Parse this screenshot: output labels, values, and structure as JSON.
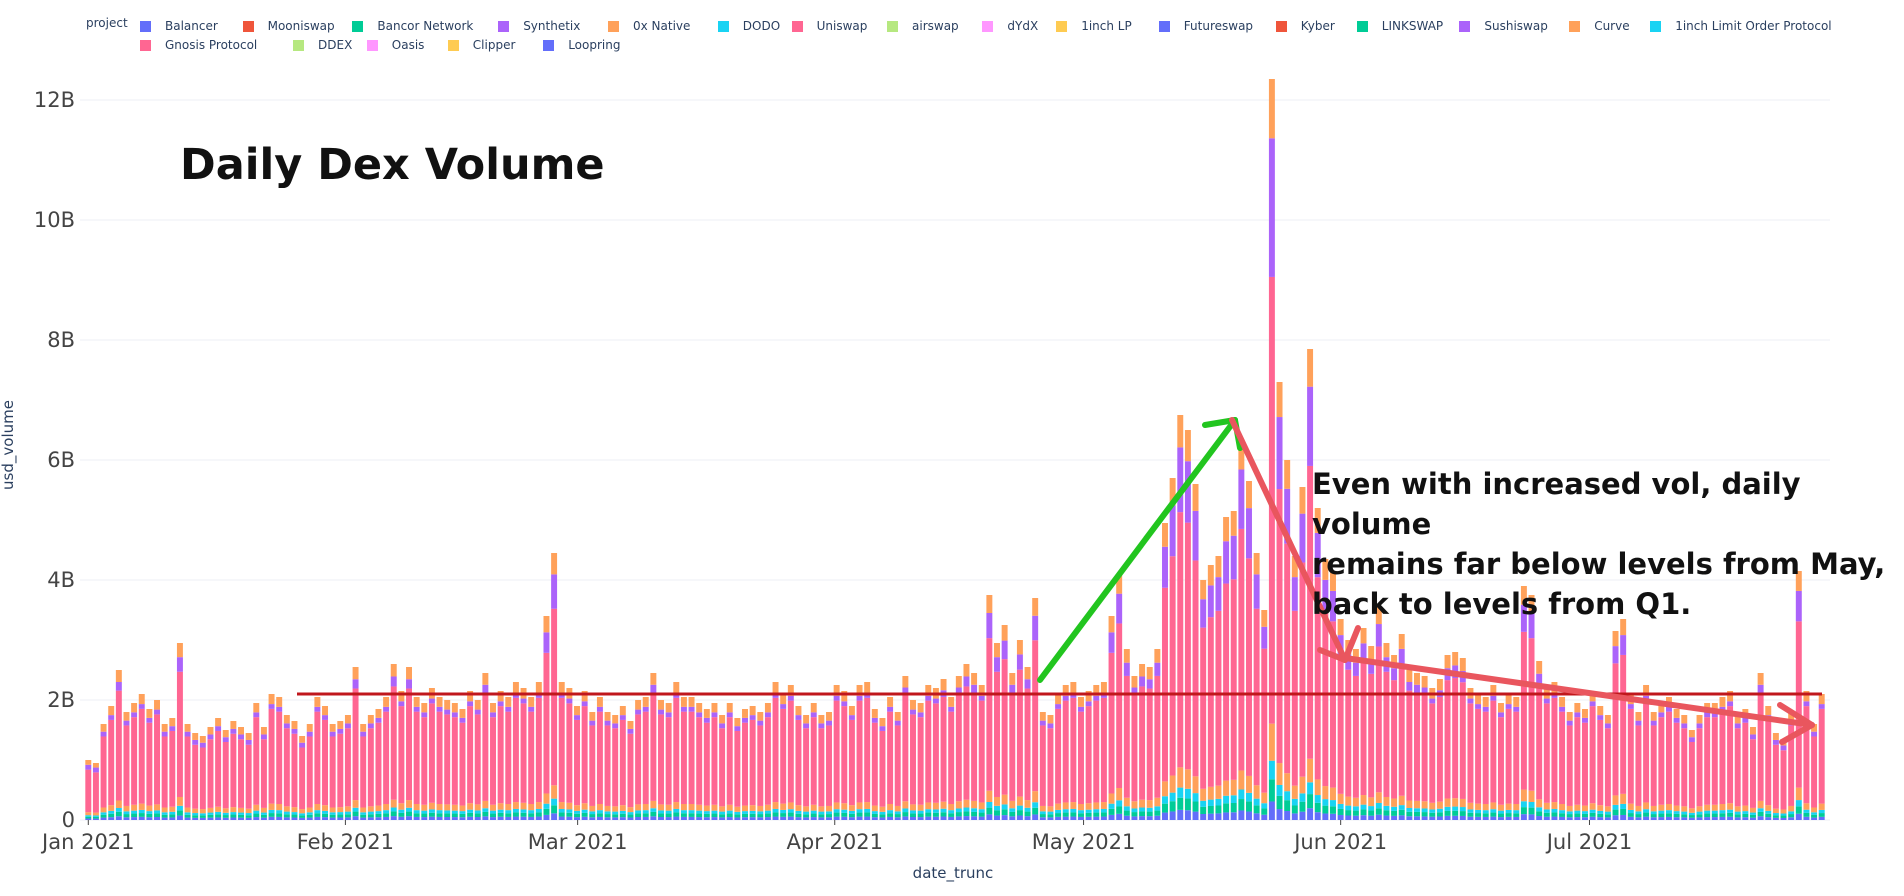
{
  "legend": {
    "title": "project",
    "items": [
      {
        "name": "Balancer",
        "color": "#636efa"
      },
      {
        "name": "Mooniswap",
        "color": "#ef553b"
      },
      {
        "name": "Bancor Network",
        "color": "#00cc96"
      },
      {
        "name": "Synthetix",
        "color": "#ab63fa"
      },
      {
        "name": "0x Native",
        "color": "#ffa15a"
      },
      {
        "name": "DODO",
        "color": "#19d3f3"
      },
      {
        "name": "Uniswap",
        "color": "#ff6692"
      },
      {
        "name": "airswap",
        "color": "#b6e880"
      },
      {
        "name": "dYdX",
        "color": "#ff97ff"
      },
      {
        "name": "1inch LP",
        "color": "#fecb52"
      },
      {
        "name": "Futureswap",
        "color": "#636efa"
      },
      {
        "name": "Kyber",
        "color": "#ef553b"
      },
      {
        "name": "LINKSWAP",
        "color": "#00cc96"
      },
      {
        "name": "Sushiswap",
        "color": "#ab63fa"
      },
      {
        "name": "Curve",
        "color": "#ffa15a"
      },
      {
        "name": "1inch Limit Order Protocol",
        "color": "#19d3f3"
      },
      {
        "name": "Gnosis Protocol",
        "color": "#ff6692"
      },
      {
        "name": "DDEX",
        "color": "#b6e880"
      },
      {
        "name": "Oasis",
        "color": "#ff97ff"
      },
      {
        "name": "Clipper",
        "color": "#fecb52"
      },
      {
        "name": "Loopring",
        "color": "#636efa"
      }
    ]
  },
  "chart_data": {
    "type": "bar",
    "stacked": true,
    "title": "",
    "xlabel": "date_trunc",
    "ylabel": "usd_volume",
    "x_range": [
      "2021-01-01",
      "2021-07-29"
    ],
    "ylim": [
      0,
      12500000000
    ],
    "x_ticks": [
      "Jan 2021",
      "Feb 2021",
      "Mar 2021",
      "Apr 2021",
      "May 2021",
      "Jun 2021",
      "Jul 2021"
    ],
    "y_ticks": [
      "0",
      "2B",
      "4B",
      "6B",
      "8B",
      "10B",
      "12B"
    ],
    "y_tick_values": [
      0,
      2000000000,
      4000000000,
      6000000000,
      8000000000,
      10000000000,
      12000000000
    ],
    "grid": true,
    "legend_position": "top",
    "series_summary": [
      "Uniswap",
      "Sushiswap",
      "Curve",
      "0x Native",
      "Bancor Network",
      "DODO",
      "Balancer"
    ],
    "daily_total_usd_volume_billions": [
      1.0,
      0.95,
      1.6,
      1.9,
      2.5,
      1.8,
      1.95,
      2.1,
      1.85,
      2.0,
      1.6,
      1.7,
      2.95,
      1.6,
      1.45,
      1.4,
      1.55,
      1.7,
      1.5,
      1.65,
      1.55,
      1.45,
      1.95,
      1.55,
      2.1,
      2.05,
      1.75,
      1.65,
      1.4,
      1.6,
      2.05,
      1.9,
      1.6,
      1.65,
      1.75,
      2.55,
      1.6,
      1.75,
      1.85,
      2.05,
      2.6,
      2.15,
      2.55,
      2.05,
      1.95,
      2.2,
      2.05,
      2.0,
      1.95,
      1.85,
      2.15,
      2.0,
      2.45,
      1.95,
      2.15,
      2.05,
      2.3,
      2.2,
      2.05,
      2.3,
      3.4,
      4.45,
      2.3,
      2.2,
      1.9,
      2.15,
      1.8,
      2.05,
      1.8,
      1.75,
      1.9,
      1.65,
      2.0,
      2.05,
      2.45,
      2.0,
      1.95,
      2.3,
      2.05,
      2.05,
      1.95,
      1.85,
      1.95,
      1.75,
      1.95,
      1.7,
      1.85,
      1.9,
      1.8,
      1.95,
      2.3,
      2.1,
      2.25,
      1.9,
      1.75,
      1.95,
      1.75,
      1.8,
      2.25,
      2.15,
      1.9,
      2.25,
      2.3,
      1.85,
      1.7,
      2.05,
      1.8,
      2.4,
      2.0,
      1.95,
      2.25,
      2.2,
      2.35,
      2.05,
      2.4,
      2.6,
      2.45,
      2.25,
      3.75,
      2.95,
      3.25,
      2.45,
      3.0,
      2.55,
      3.7,
      1.8,
      1.75,
      2.1,
      2.25,
      2.3,
      2.05,
      2.15,
      2.25,
      2.3,
      3.4,
      4.1,
      2.85,
      2.4,
      2.6,
      2.55,
      2.85,
      4.95,
      5.7,
      6.75,
      6.5,
      5.6,
      4.0,
      4.25,
      4.4,
      5.05,
      5.15,
      6.35,
      5.65,
      4.45,
      3.5,
      12.35,
      7.3,
      6.0,
      4.4,
      5.55,
      7.85,
      5.2,
      4.35,
      4.15,
      3.35,
      3.0,
      2.85,
      3.2,
      2.9,
      3.55,
      2.95,
      2.75,
      3.1,
      2.5,
      2.45,
      2.4,
      2.2,
      2.35,
      2.75,
      2.8,
      2.7,
      2.2,
      2.1,
      2.05,
      2.25,
      1.95,
      2.1,
      2.05,
      3.9,
      3.75,
      2.65,
      2.2,
      2.3,
      2.05,
      1.8,
      1.95,
      1.85,
      2.15,
      1.9,
      1.75,
      3.15,
      3.35,
      2.1,
      1.8,
      2.25,
      1.8,
      1.95,
      2.05,
      1.85,
      1.75,
      1.5,
      1.75,
      1.95,
      1.95,
      2.05,
      2.15,
      1.75,
      1.85,
      1.55,
      2.45,
      1.9,
      1.45,
      1.35,
      1.8,
      4.15,
      2.15,
      1.6,
      2.1
    ]
  },
  "annotations": {
    "chart_title": "Daily Dex Volume",
    "note_lines": [
      "Even with increased vol, daily volume",
      "remains far below levels from May,",
      "back to levels from Q1."
    ],
    "baseline_level_billions": 2.1,
    "baseline_color": "#c0171c",
    "up_arrow_color": "#22c51f",
    "down_arrow_color": "#e9565e"
  }
}
